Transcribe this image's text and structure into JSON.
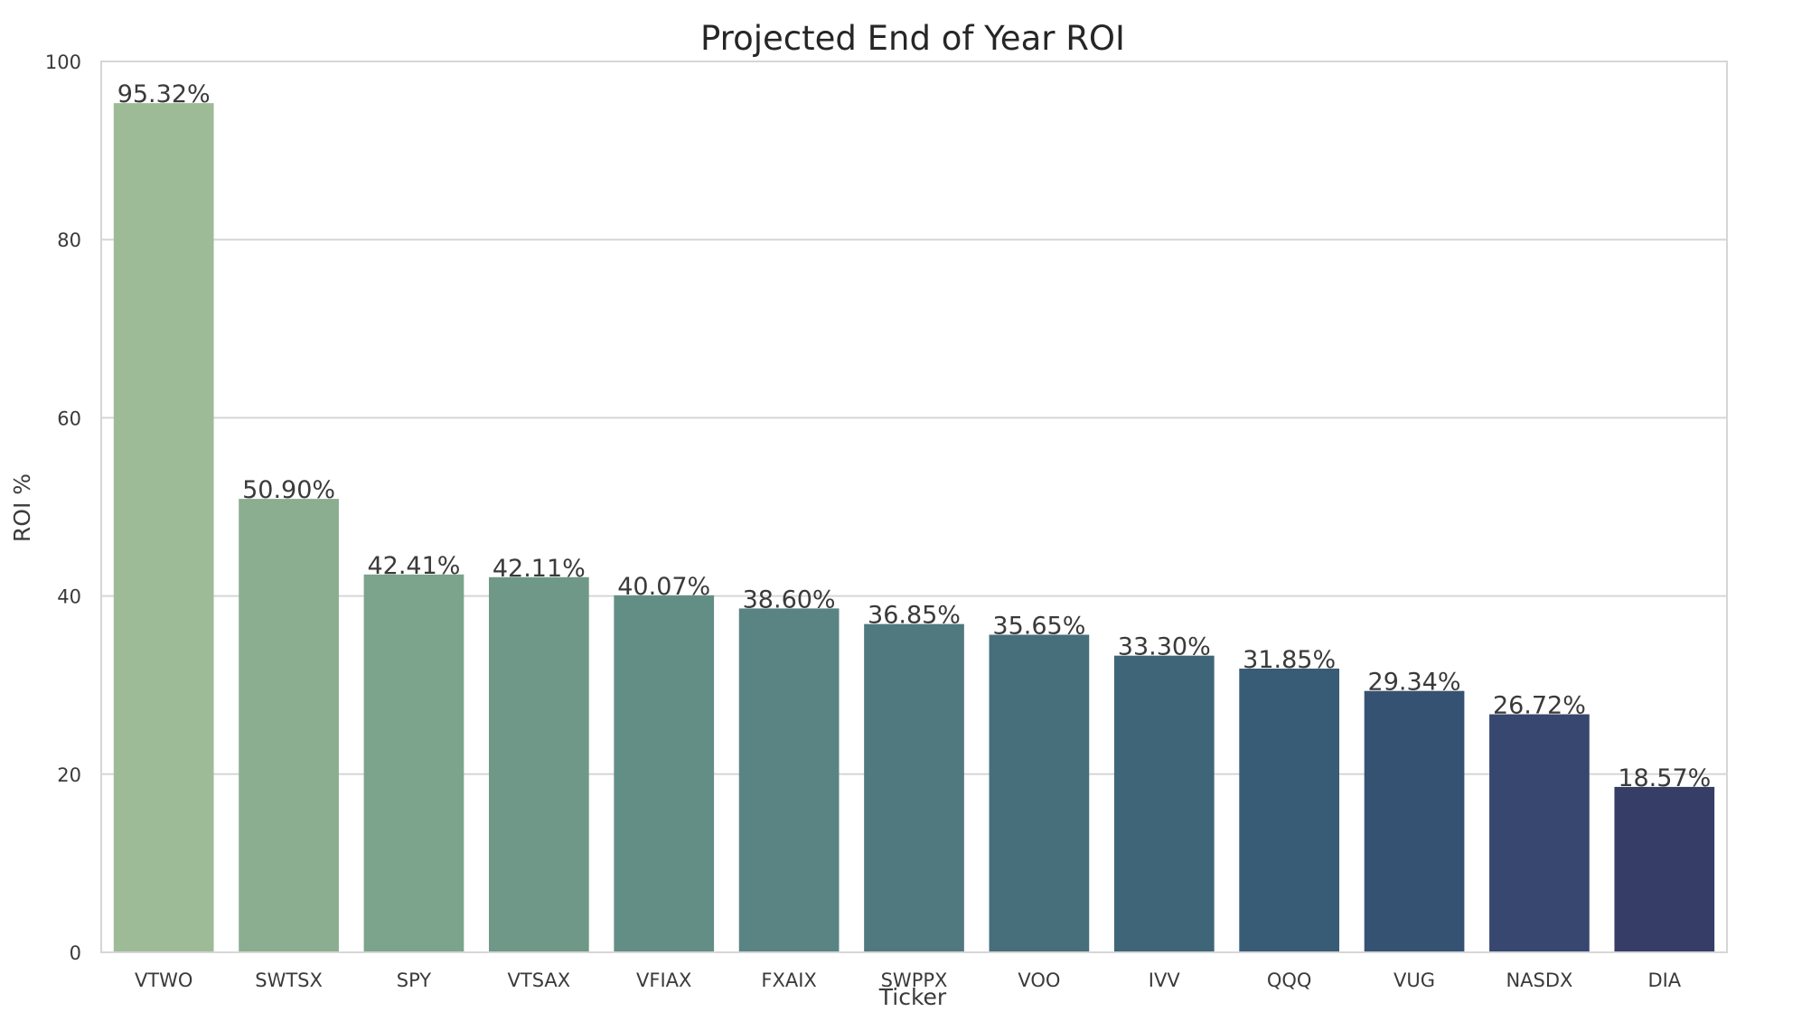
{
  "chart_data": {
    "type": "bar",
    "title": "Projected End of Year ROI",
    "xlabel": "Ticker",
    "ylabel": "ROI %",
    "ylim": [
      0,
      100
    ],
    "yticks": [
      0,
      20,
      40,
      60,
      80,
      100
    ],
    "grid": "horizontal",
    "categories": [
      "VTWO",
      "SWTSX",
      "SPY",
      "VTSAX",
      "VFIAX",
      "FXAIX",
      "SWPPX",
      "VOO",
      "IVV",
      "QQQ",
      "VUG",
      "NASDX",
      "DIA"
    ],
    "values": [
      95.32,
      50.9,
      42.41,
      42.11,
      40.07,
      38.6,
      36.85,
      35.65,
      33.3,
      31.85,
      29.34,
      26.72,
      18.57
    ],
    "value_labels": [
      "95.32%",
      "50.90%",
      "42.41%",
      "42.11%",
      "40.07%",
      "38.60%",
      "36.85%",
      "35.65%",
      "33.30%",
      "31.85%",
      "29.34%",
      "26.72%",
      "18.57%"
    ],
    "colors": [
      "#9dbb97",
      "#8bad90",
      "#7ca38c",
      "#6f9888",
      "#638e86",
      "#598483",
      "#50797f",
      "#466f7b",
      "#3e6678",
      "#395c76",
      "#365273",
      "#37476f",
      "#363e68"
    ]
  }
}
